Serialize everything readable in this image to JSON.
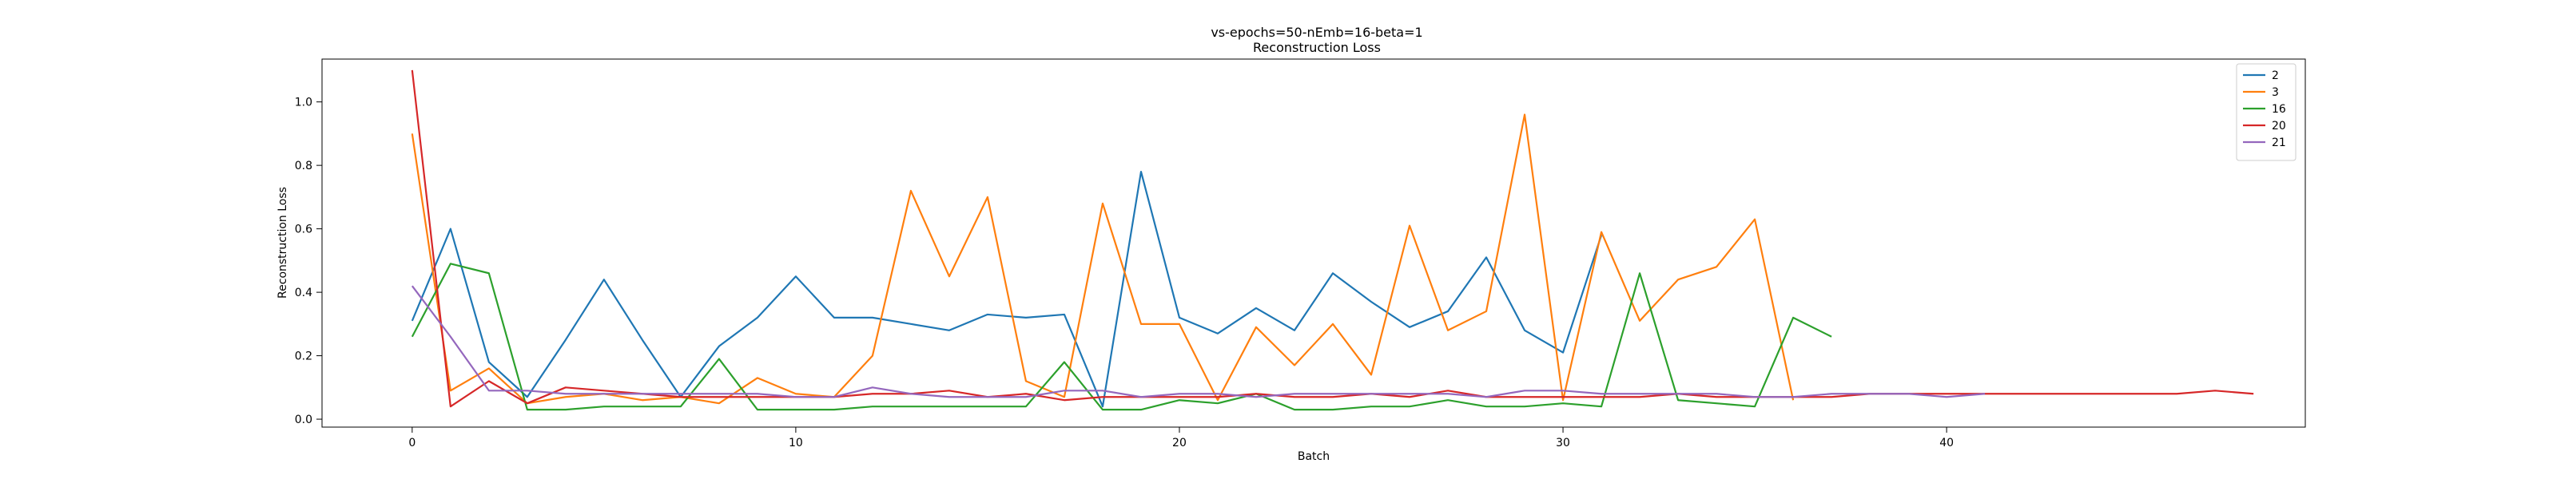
{
  "chart_data": {
    "type": "line",
    "title": "vs-epochs=50-nEmb=16-beta=1",
    "subtitle": "Reconstruction Loss",
    "xlabel": "Batch",
    "ylabel": "Reconstruction Loss",
    "xlim": [
      -2.35,
      49.35
    ],
    "ylim": [
      -0.025,
      1.135
    ],
    "xticks": [
      0,
      10,
      20,
      30,
      40
    ],
    "yticks": [
      0.0,
      0.2,
      0.4,
      0.6,
      0.8,
      1.0
    ],
    "xtick_labels": [
      "0",
      "10",
      "20",
      "30",
      "40"
    ],
    "ytick_labels": [
      "0.0",
      "0.2",
      "0.4",
      "0.6",
      "0.8",
      "1.0"
    ],
    "grid": false,
    "legend_position": "top-right",
    "series": [
      {
        "name": "2",
        "color": "#1f77b4",
        "values": [
          0.31,
          0.6,
          0.18,
          0.07,
          0.25,
          0.44,
          0.25,
          0.07,
          0.23,
          0.32,
          0.45,
          0.32,
          0.32,
          0.3,
          0.28,
          0.33,
          0.32,
          0.33,
          0.04,
          0.78,
          0.32,
          0.27,
          0.35,
          0.28,
          0.46,
          0.37,
          0.29,
          0.34,
          0.51,
          0.28,
          0.21,
          0.58
        ]
      },
      {
        "name": "3",
        "color": "#ff7f0e",
        "values": [
          0.9,
          0.09,
          0.16,
          0.05,
          0.07,
          0.08,
          0.06,
          0.07,
          0.05,
          0.13,
          0.08,
          0.07,
          0.2,
          0.72,
          0.45,
          0.7,
          0.12,
          0.07,
          0.68,
          0.3,
          0.3,
          0.06,
          0.29,
          0.17,
          0.3,
          0.14,
          0.61,
          0.28,
          0.34,
          0.96,
          0.06,
          0.59,
          0.31,
          0.44,
          0.48,
          0.63,
          0.06
        ]
      },
      {
        "name": "16",
        "color": "#2ca02c",
        "values": [
          0.26,
          0.49,
          0.46,
          0.03,
          0.03,
          0.04,
          0.04,
          0.04,
          0.19,
          0.03,
          0.03,
          0.03,
          0.04,
          0.04,
          0.04,
          0.04,
          0.04,
          0.18,
          0.03,
          0.03,
          0.06,
          0.05,
          0.08,
          0.03,
          0.03,
          0.04,
          0.04,
          0.06,
          0.04,
          0.04,
          0.05,
          0.04,
          0.46,
          0.06,
          0.05,
          0.04,
          0.32,
          0.26
        ]
      },
      {
        "name": "20",
        "color": "#d62728",
        "values": [
          1.1,
          0.04,
          0.12,
          0.05,
          0.1,
          0.09,
          0.08,
          0.07,
          0.07,
          0.07,
          0.07,
          0.07,
          0.08,
          0.08,
          0.09,
          0.07,
          0.08,
          0.06,
          0.07,
          0.07,
          0.07,
          0.07,
          0.08,
          0.07,
          0.07,
          0.08,
          0.07,
          0.09,
          0.07,
          0.07,
          0.07,
          0.07,
          0.07,
          0.08,
          0.07,
          0.07,
          0.07,
          0.07,
          0.08,
          0.08,
          0.08,
          0.08,
          0.08,
          0.08,
          0.08,
          0.08,
          0.08,
          0.09,
          0.08
        ]
      },
      {
        "name": "21",
        "color": "#9467bd",
        "values": [
          0.42,
          0.26,
          0.09,
          0.09,
          0.08,
          0.08,
          0.08,
          0.08,
          0.08,
          0.08,
          0.07,
          0.07,
          0.1,
          0.08,
          0.07,
          0.07,
          0.07,
          0.09,
          0.09,
          0.07,
          0.08,
          0.08,
          0.07,
          0.08,
          0.08,
          0.08,
          0.08,
          0.08,
          0.07,
          0.09,
          0.09,
          0.08,
          0.08,
          0.08,
          0.08,
          0.07,
          0.07,
          0.08,
          0.08,
          0.08,
          0.07,
          0.08
        ]
      }
    ]
  }
}
